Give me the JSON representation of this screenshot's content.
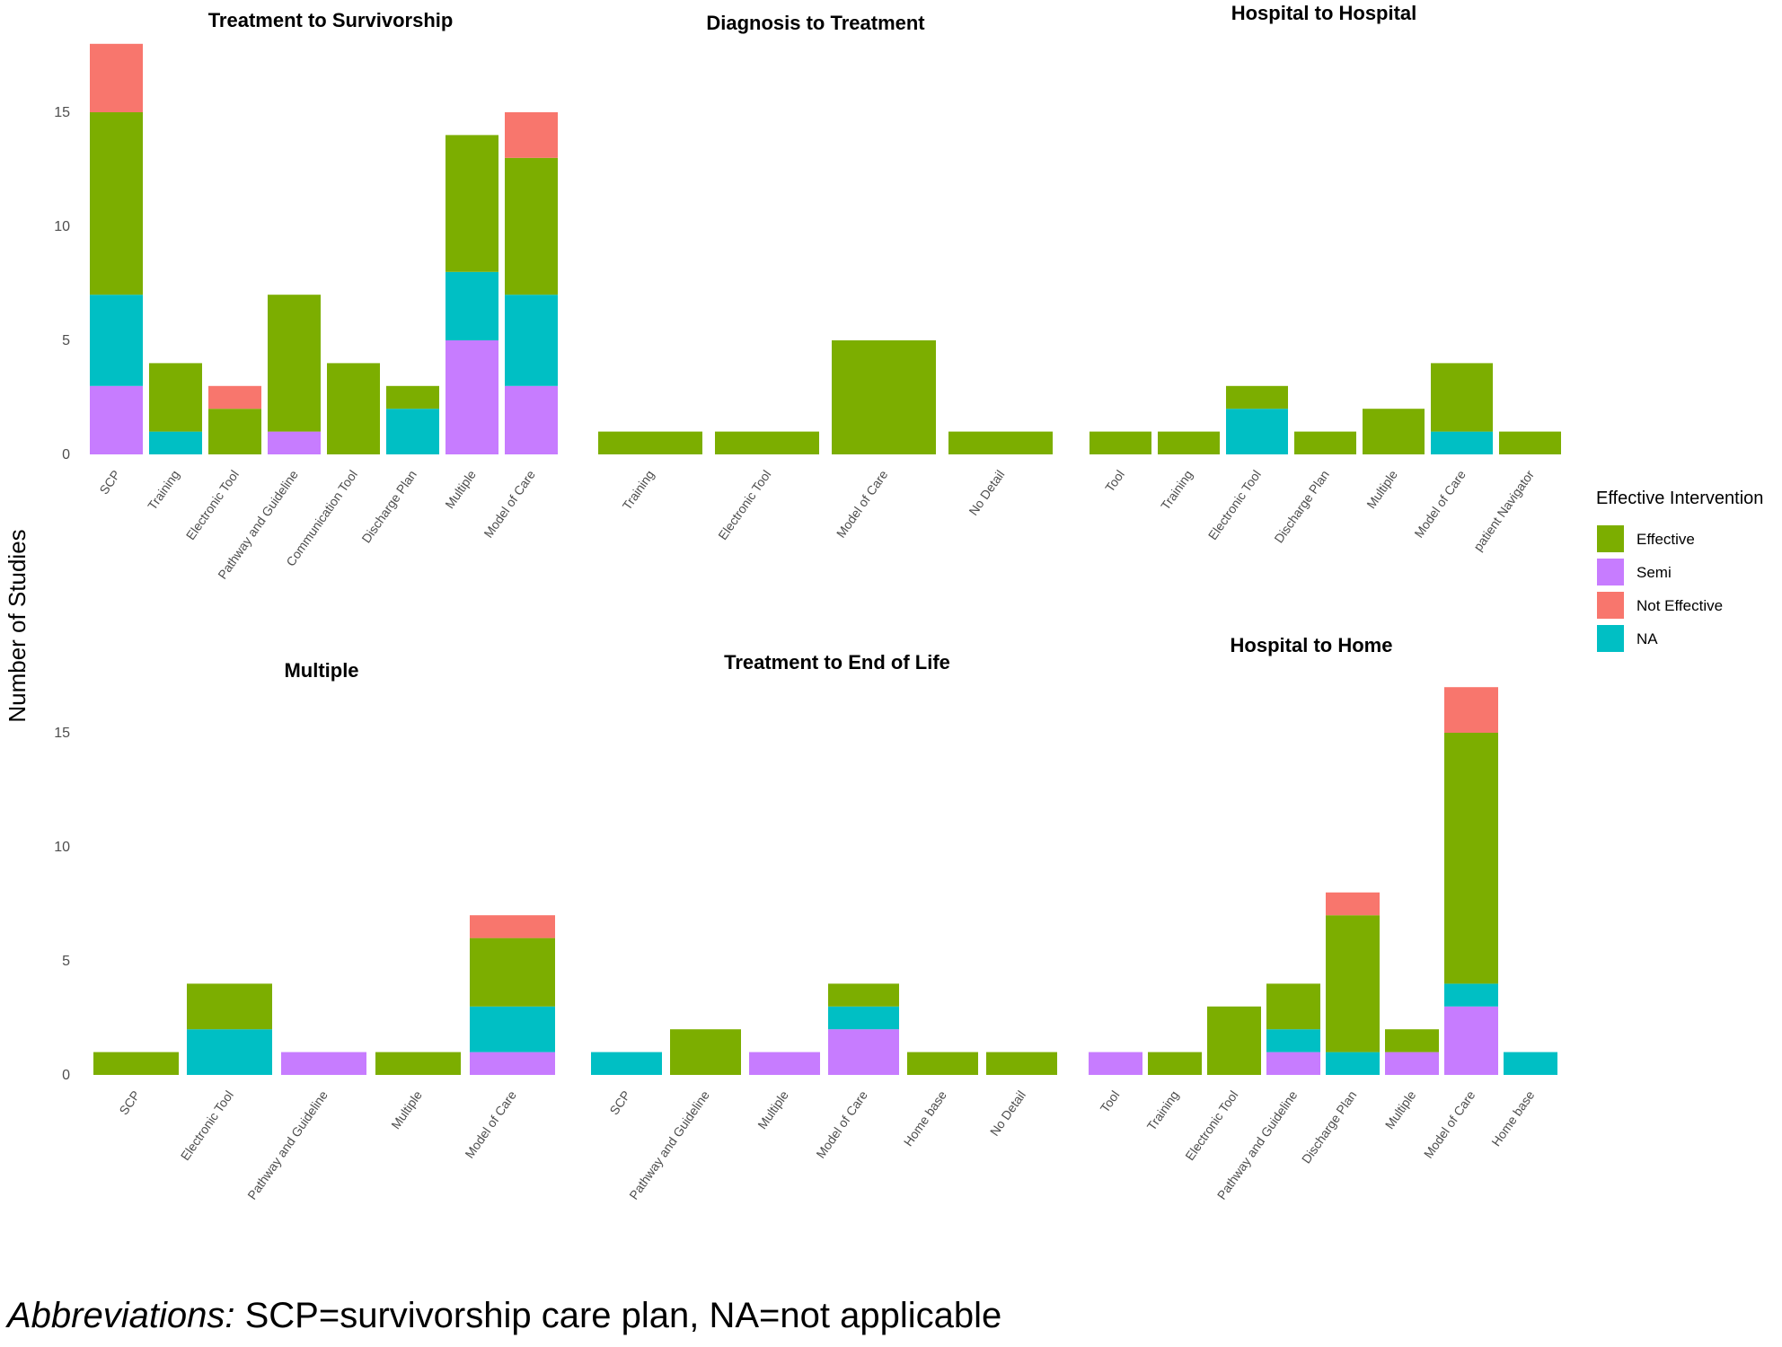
{
  "figure": {
    "y_axis_label": "Number of Studies",
    "legend_title": "Effective Intervention",
    "legend_items": [
      {
        "name": "Effective",
        "color": "#7CAE00"
      },
      {
        "name": "Semi",
        "color": "#C77CFF"
      },
      {
        "name": "Not Effective",
        "color": "#F8766D"
      },
      {
        "name": "NA",
        "color": "#00BFC4"
      }
    ],
    "legend_placement": "right"
  },
  "footnote": {
    "label": "Abbreviations:",
    "text": " SCP=survivorship care plan, NA=not applicable"
  },
  "chart_data": [
    {
      "type": "bar",
      "stacked": true,
      "title": "Treatment to Survivorship",
      "ylabel": "Number of Studies",
      "ylim": [
        0,
        18
      ],
      "yticks": [
        0,
        5,
        10,
        15
      ],
      "categories": [
        "SCP",
        "Training",
        "Electronic Tool",
        "Pathway and Guideline",
        "Communication Tool",
        "Discharge Plan",
        "Multiple",
        "Model of Care"
      ],
      "series": [
        {
          "name": "Semi",
          "values": [
            3,
            0,
            0,
            1,
            0,
            0,
            5,
            3
          ]
        },
        {
          "name": "NA",
          "values": [
            4,
            1,
            0,
            0,
            0,
            2,
            3,
            4
          ]
        },
        {
          "name": "Effective",
          "values": [
            8,
            3,
            2,
            6,
            4,
            1,
            6,
            6
          ]
        },
        {
          "name": "Not Effective",
          "values": [
            3,
            0,
            1,
            0,
            0,
            0,
            0,
            2
          ]
        }
      ]
    },
    {
      "type": "bar",
      "stacked": true,
      "title": "Diagnosis to Treatment",
      "ylim": [
        0,
        18
      ],
      "categories": [
        "Training",
        "Electronic Tool",
        "Model of Care",
        "No Detail"
      ],
      "series": [
        {
          "name": "Semi",
          "values": [
            0,
            0,
            0,
            0
          ]
        },
        {
          "name": "NA",
          "values": [
            0,
            0,
            0,
            0
          ]
        },
        {
          "name": "Effective",
          "values": [
            1,
            1,
            5,
            1
          ]
        },
        {
          "name": "Not Effective",
          "values": [
            0,
            0,
            0,
            0
          ]
        }
      ]
    },
    {
      "type": "bar",
      "stacked": true,
      "title": "Hospital to Hospital",
      "ylim": [
        0,
        18
      ],
      "categories": [
        "Tool",
        "Training",
        "Electronic Tool",
        "Discharge Plan",
        "Multiple",
        "Model of Care",
        "patient Navigator"
      ],
      "series": [
        {
          "name": "Semi",
          "values": [
            0,
            0,
            0,
            0,
            0,
            0,
            0
          ]
        },
        {
          "name": "NA",
          "values": [
            0,
            0,
            2,
            0,
            0,
            1,
            0
          ]
        },
        {
          "name": "Effective",
          "values": [
            1,
            1,
            1,
            1,
            2,
            3,
            1
          ]
        },
        {
          "name": "Not Effective",
          "values": [
            0,
            0,
            0,
            0,
            0,
            0,
            0
          ]
        }
      ]
    },
    {
      "type": "bar",
      "stacked": true,
      "title": "Multiple",
      "ylabel": "Number of Studies",
      "ylim": [
        0,
        18
      ],
      "yticks": [
        0,
        5,
        10,
        15
      ],
      "categories": [
        "SCP",
        "Electronic Tool",
        "Pathway and Guideline",
        "Multiple",
        "Model of Care"
      ],
      "series": [
        {
          "name": "Semi",
          "values": [
            0,
            0,
            1,
            0,
            1
          ]
        },
        {
          "name": "NA",
          "values": [
            0,
            2,
            0,
            0,
            2
          ]
        },
        {
          "name": "Effective",
          "values": [
            1,
            2,
            0,
            1,
            3
          ]
        },
        {
          "name": "Not Effective",
          "values": [
            0,
            0,
            0,
            0,
            1
          ]
        }
      ]
    },
    {
      "type": "bar",
      "stacked": true,
      "title": "Treatment to End of Life",
      "ylim": [
        0,
        18
      ],
      "categories": [
        "SCP",
        "Pathway and Guideline",
        "Multiple",
        "Model of Care",
        "Home base",
        "No Detail"
      ],
      "series": [
        {
          "name": "Semi",
          "values": [
            0,
            0,
            1,
            2,
            0,
            0
          ]
        },
        {
          "name": "NA",
          "values": [
            1,
            0,
            0,
            1,
            0,
            0
          ]
        },
        {
          "name": "Effective",
          "values": [
            0,
            2,
            0,
            1,
            1,
            1
          ]
        },
        {
          "name": "Not Effective",
          "values": [
            0,
            0,
            0,
            0,
            0,
            0
          ]
        }
      ]
    },
    {
      "type": "bar",
      "stacked": true,
      "title": "Hospital to Home",
      "ylim": [
        0,
        18
      ],
      "categories": [
        "Tool",
        "Training",
        "Electronic Tool",
        "Pathway and Guideline",
        "Discharge Plan",
        "Multiple",
        "Model of Care",
        "Home base"
      ],
      "series": [
        {
          "name": "Semi",
          "values": [
            1,
            0,
            0,
            1,
            0,
            1,
            3,
            0
          ]
        },
        {
          "name": "NA",
          "values": [
            0,
            0,
            0,
            1,
            1,
            0,
            1,
            1
          ]
        },
        {
          "name": "Effective",
          "values": [
            0,
            1,
            3,
            2,
            6,
            1,
            11,
            0
          ]
        },
        {
          "name": "Not Effective",
          "values": [
            0,
            0,
            0,
            0,
            1,
            0,
            2,
            0
          ]
        }
      ]
    }
  ]
}
